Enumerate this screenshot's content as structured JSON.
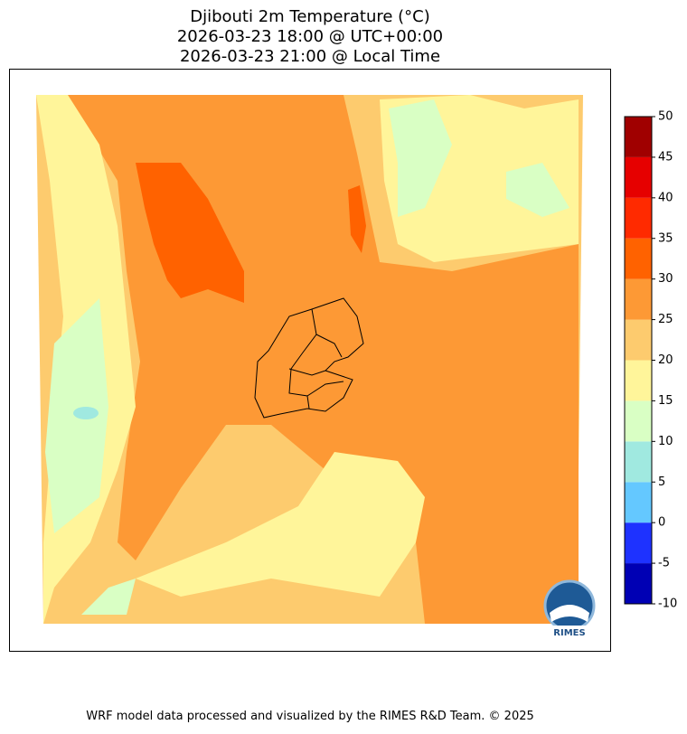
{
  "title": [
    "Djibouti 2m Temperature (°C)",
    "2026-03-23 18:00 @ UTC+00:00",
    "2026-03-23 21:00 @ Local Time"
  ],
  "colorbar": {
    "ticks": [
      -10,
      -5,
      0,
      5,
      10,
      15,
      20,
      25,
      30,
      35,
      40,
      45,
      50
    ],
    "colors": [
      "#0000b4",
      "#1e32ff",
      "#64c8ff",
      "#a0e9e0",
      "#d9ffc4",
      "#fff59a",
      "#fdcb6e",
      "#fd9935",
      "#ff6200",
      "#ff2a00",
      "#e60000",
      "#a00000"
    ]
  },
  "footer": "WRF model data processed and visualized by the RIMES R&D Team. © 2025",
  "logo": "RIMES"
}
